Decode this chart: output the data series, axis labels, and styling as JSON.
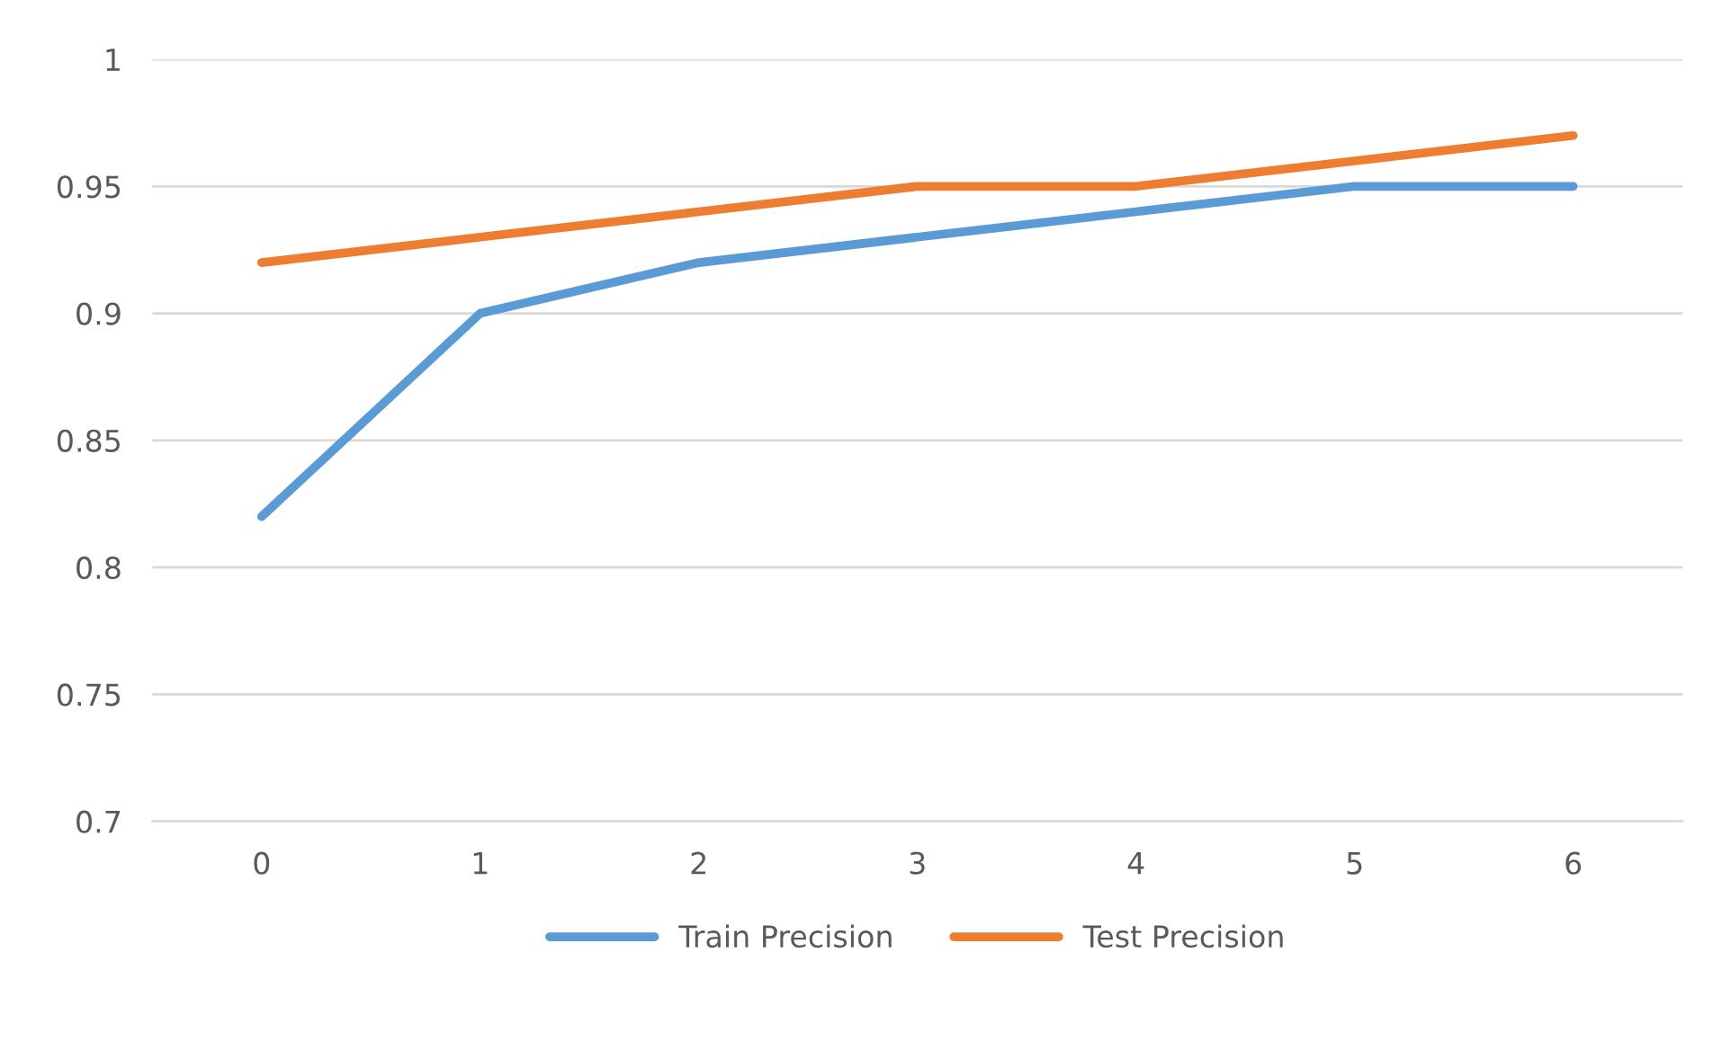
{
  "chart_data": {
    "type": "line",
    "categories": [
      "0",
      "1",
      "2",
      "3",
      "4",
      "5",
      "6"
    ],
    "series": [
      {
        "name": "Train Precision",
        "color": "#5b9bd5",
        "values": [
          0.82,
          0.9,
          0.92,
          0.93,
          0.94,
          0.95,
          0.95
        ]
      },
      {
        "name": "Test Precision",
        "color": "#ed7d31",
        "values": [
          0.92,
          0.93,
          0.94,
          0.95,
          0.95,
          0.96,
          0.97
        ]
      }
    ],
    "ylim": [
      0.7,
      1
    ],
    "yticks": [
      0.7,
      0.75,
      0.8,
      0.85,
      0.9,
      0.95,
      1
    ],
    "grid": "y",
    "legend": "bottom",
    "marker": "none",
    "line_style": "solid"
  }
}
